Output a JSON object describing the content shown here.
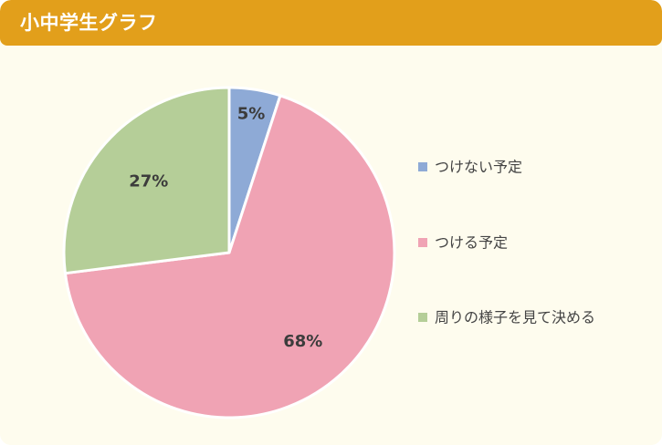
{
  "header": {
    "title": "小中学生グラフ"
  },
  "colors": {
    "header_bg": "#e29f1b",
    "card_bg": "#fefcee",
    "slice_blue": "#8eaad6",
    "slice_pink": "#f0a3b4",
    "slice_green": "#b5ce98"
  },
  "chart_data": {
    "type": "pie",
    "title": "",
    "legend_position": "right",
    "slices": [
      {
        "label": "つけない予定",
        "value": 5,
        "display": "5%",
        "color": "#8eaad6"
      },
      {
        "label": "つける予定",
        "value": 68,
        "display": "68%",
        "color": "#f0a3b4"
      },
      {
        "label": "周りの様子を見て決める",
        "value": 27,
        "display": "27%",
        "color": "#b5ce98"
      }
    ]
  }
}
